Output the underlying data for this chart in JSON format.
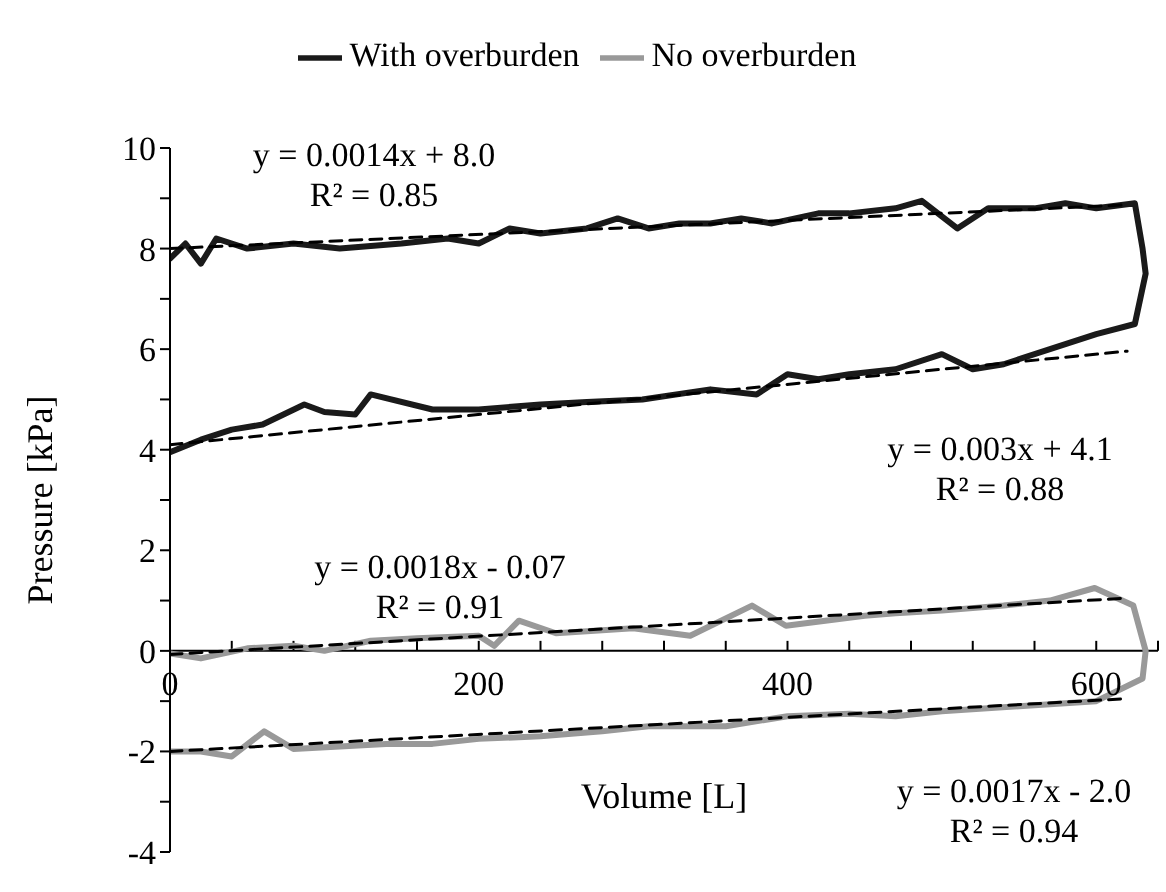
{
  "chart_data": {
    "type": "line",
    "xlabel": "Volume [L]",
    "ylabel": "Pressure [kPa]",
    "xlim": [
      0,
      640
    ],
    "ylim": [
      -4,
      10
    ],
    "xticks": [
      0,
      {
        "value": 40,
        "label": null
      },
      {
        "value": 80,
        "label": null
      },
      {
        "value": 120,
        "label": null
      },
      {
        "value": 160,
        "label": null
      },
      200,
      {
        "value": 240,
        "label": null
      },
      {
        "value": 280,
        "label": null
      },
      {
        "value": 320,
        "label": null
      },
      {
        "value": 360,
        "label": null
      },
      400,
      {
        "value": 440,
        "label": null
      },
      {
        "value": 480,
        "label": null
      },
      {
        "value": 520,
        "label": null
      },
      {
        "value": 560,
        "label": null
      },
      600,
      {
        "value": 640,
        "label": null
      }
    ],
    "yticks": [
      -4,
      {
        "value": -3,
        "label": null
      },
      -2,
      {
        "value": -1,
        "label": null
      },
      0,
      {
        "value": 1,
        "label": null
      },
      2,
      {
        "value": 3,
        "label": null
      },
      4,
      {
        "value": 5,
        "label": null
      },
      6,
      {
        "value": 7,
        "label": null
      },
      8,
      {
        "value": 9,
        "label": null
      },
      10
    ],
    "legend": "top",
    "grid": false,
    "series": [
      {
        "name": "With overburden",
        "color": "#1a1a1a",
        "line_style": "solid",
        "x": [
          0,
          10,
          20,
          30,
          50,
          80,
          110,
          150,
          180,
          200,
          220,
          240,
          270,
          290,
          310,
          330,
          350,
          370,
          390,
          420,
          440,
          470,
          487,
          510,
          530,
          540,
          560,
          580,
          600,
          625,
          630,
          632,
          625,
          600,
          570,
          540,
          520,
          500,
          470,
          440,
          420,
          400,
          380,
          350,
          306,
          270,
          240,
          200,
          170,
          130,
          120,
          100,
          87,
          60,
          40,
          20,
          0
        ],
        "values": [
          7.8,
          8.1,
          7.7,
          8.2,
          8.0,
          8.1,
          8.0,
          8.1,
          8.2,
          8.1,
          8.4,
          8.3,
          8.4,
          8.6,
          8.4,
          8.5,
          8.5,
          8.6,
          8.5,
          8.7,
          8.7,
          8.8,
          8.95,
          8.4,
          8.8,
          8.8,
          8.8,
          8.9,
          8.8,
          8.9,
          8.0,
          7.5,
          6.5,
          6.3,
          6.0,
          5.7,
          5.6,
          5.9,
          5.6,
          5.5,
          5.4,
          5.5,
          5.1,
          5.2,
          5.0,
          4.95,
          4.9,
          4.8,
          4.8,
          5.1,
          4.7,
          4.75,
          4.9,
          4.5,
          4.4,
          4.2,
          3.95
        ]
      },
      {
        "name": "No overburden",
        "color": "#999999",
        "line_style": "solid",
        "x": [
          0,
          20,
          50,
          80,
          100,
          130,
          160,
          200,
          210,
          226,
          250,
          300,
          337,
          377,
          399,
          450,
          470,
          500,
          540,
          570,
          599,
          624,
          632,
          630,
          600,
          550,
          500,
          470,
          440,
          400,
          360,
          310,
          280,
          240,
          200,
          170,
          140,
          110,
          80,
          61,
          40,
          20,
          0
        ],
        "values": [
          -0.05,
          -0.15,
          0.05,
          0.1,
          0.0,
          0.2,
          0.25,
          0.3,
          0.1,
          0.6,
          0.35,
          0.45,
          0.3,
          0.9,
          0.5,
          0.7,
          0.75,
          0.8,
          0.9,
          1.0,
          1.25,
          0.9,
          0.0,
          -0.55,
          -1.0,
          -1.1,
          -1.2,
          -1.3,
          -1.25,
          -1.3,
          -1.5,
          -1.5,
          -1.6,
          -1.7,
          -1.75,
          -1.85,
          -1.85,
          -1.9,
          -1.95,
          -1.6,
          -2.1,
          -2.0,
          -2.0
        ]
      },
      {
        "type": "line",
        "color": "#000000",
        "line_style": "dashed",
        "x": [
          0,
          620
        ],
        "values": [
          8.0,
          8.87
        ]
      },
      {
        "type": "line",
        "color": "#000000",
        "line_style": "dashed",
        "x": [
          0,
          620
        ],
        "values": [
          4.1,
          5.96
        ]
      },
      {
        "type": "line",
        "color": "#000000",
        "line_style": "dashed",
        "x": [
          0,
          620
        ],
        "values": [
          -0.07,
          1.05
        ]
      },
      {
        "type": "line",
        "color": "#000000",
        "line_style": "dashed",
        "x": [
          0,
          620
        ],
        "values": [
          -2.0,
          -0.95
        ]
      }
    ],
    "annotations": [
      "y = 0.0014x + 8.0\nR² = 0.85",
      "y = 0.003x + 4.1\nR² = 0.88",
      "y = 0.0018x - 0.07\nR² = 0.91",
      "y = 0.0017x - 2.0\nR² = 0.94"
    ]
  }
}
